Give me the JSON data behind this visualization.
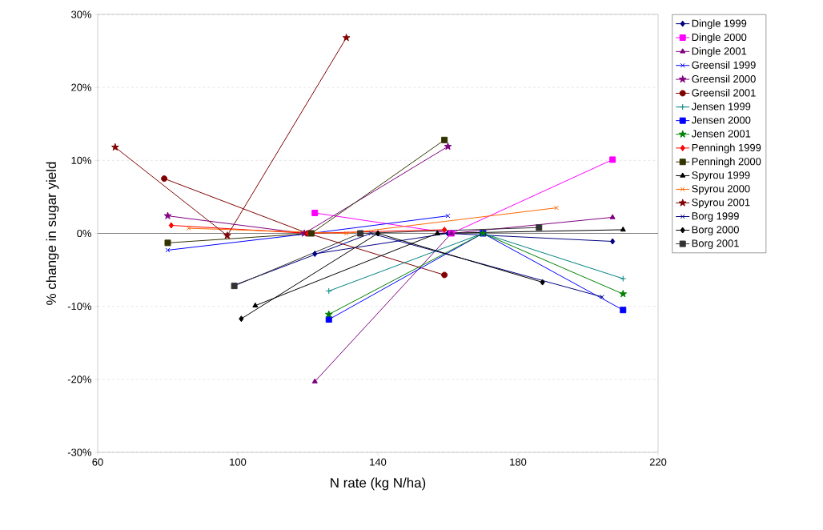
{
  "chart_data": {
    "type": "line",
    "xlabel": "N rate (kg N/ha)",
    "ylabel": "% change in sugar yield",
    "xlim": [
      60,
      220
    ],
    "xticks": [
      60,
      100,
      140,
      180,
      220
    ],
    "ylim": [
      -30,
      30
    ],
    "yticks": [
      {
        "value": -30,
        "label": "-30%"
      },
      {
        "value": -20,
        "label": "-20%"
      },
      {
        "value": -10,
        "label": "-10%"
      },
      {
        "value": 0,
        "label": "0%"
      },
      {
        "value": 10,
        "label": "10%"
      },
      {
        "value": 20,
        "label": "20%"
      },
      {
        "value": 30,
        "label": "30%"
      }
    ],
    "grid": "y",
    "legend": "right",
    "ref_lines": [
      {
        "axis": "y",
        "value": 0,
        "color": "#808080"
      }
    ],
    "series": [
      {
        "name": "Dingle 1999",
        "color": "#000080",
        "marker": "diamond",
        "x": [
          122,
          160,
          207
        ],
        "values": [
          -2.8,
          0,
          -1.1
        ]
      },
      {
        "name": "Dingle 2000",
        "color": "#ff00ff",
        "marker": "square",
        "x": [
          122,
          161,
          207
        ],
        "values": [
          2.8,
          0,
          10.1
        ]
      },
      {
        "name": "Dingle 2001",
        "color": "#800080",
        "marker": "triangle",
        "x": [
          122,
          161,
          207
        ],
        "values": [
          -20.3,
          0,
          2.2
        ]
      },
      {
        "name": "Greensil 1999",
        "color": "#0000ff",
        "marker": "cross",
        "x": [
          80,
          121,
          160
        ],
        "values": [
          -2.3,
          0,
          2.4
        ]
      },
      {
        "name": "Greensil 2000",
        "color": "#800080",
        "marker": "star",
        "x": [
          80,
          119,
          160
        ],
        "values": [
          2.4,
          0,
          11.9
        ]
      },
      {
        "name": "Greensil 2001",
        "color": "#800000",
        "marker": "circle",
        "x": [
          79,
          120,
          159
        ],
        "values": [
          7.5,
          0,
          -5.7
        ]
      },
      {
        "name": "Jensen 1999",
        "color": "#008080",
        "marker": "plus",
        "x": [
          126,
          170,
          210
        ],
        "values": [
          -7.9,
          0,
          -6.2
        ]
      },
      {
        "name": "Jensen 2000",
        "color": "#0000ff",
        "marker": "square",
        "x": [
          126,
          170,
          210
        ],
        "values": [
          -11.8,
          0,
          -10.5
        ]
      },
      {
        "name": "Jensen 2001",
        "color": "#008000",
        "marker": "star",
        "x": [
          126,
          170,
          210
        ],
        "values": [
          -11.1,
          0,
          -8.3
        ]
      },
      {
        "name": "Penningh 1999",
        "color": "#ff0000",
        "marker": "diamond",
        "x": [
          81,
          120,
          159
        ],
        "values": [
          1.1,
          0,
          0.5
        ]
      },
      {
        "name": "Penningh 2000",
        "color": "#333300",
        "marker": "square",
        "x": [
          80,
          121,
          159
        ],
        "values": [
          -1.3,
          0,
          12.8
        ]
      },
      {
        "name": "Spyrou 1999",
        "color": "#000000",
        "marker": "triangle",
        "x": [
          105,
          157,
          210
        ],
        "values": [
          -9.9,
          0,
          0.5
        ]
      },
      {
        "name": "Spyrou 2000",
        "color": "#ff6600",
        "marker": "cross",
        "x": [
          86,
          131,
          191
        ],
        "values": [
          0.7,
          0,
          3.5
        ]
      },
      {
        "name": "Spyrou 2001",
        "color": "#800000",
        "marker": "star",
        "x": [
          65,
          97,
          131
        ],
        "values": [
          11.8,
          -0.3,
          26.8
        ]
      },
      {
        "name": "Borg 1999",
        "color": "#000080",
        "marker": "cross",
        "x": [
          99,
          138,
          204
        ],
        "values": [
          -7.1,
          0,
          -8.7
        ]
      },
      {
        "name": "Borg 2000",
        "color": "#000000",
        "marker": "diamond",
        "x": [
          101,
          140,
          187
        ],
        "values": [
          -11.7,
          0,
          -6.7
        ]
      },
      {
        "name": "Borg 2001",
        "color": "#333333",
        "marker": "square",
        "x": [
          99,
          135,
          186
        ],
        "values": [
          -7.2,
          0,
          0.8
        ]
      }
    ]
  }
}
